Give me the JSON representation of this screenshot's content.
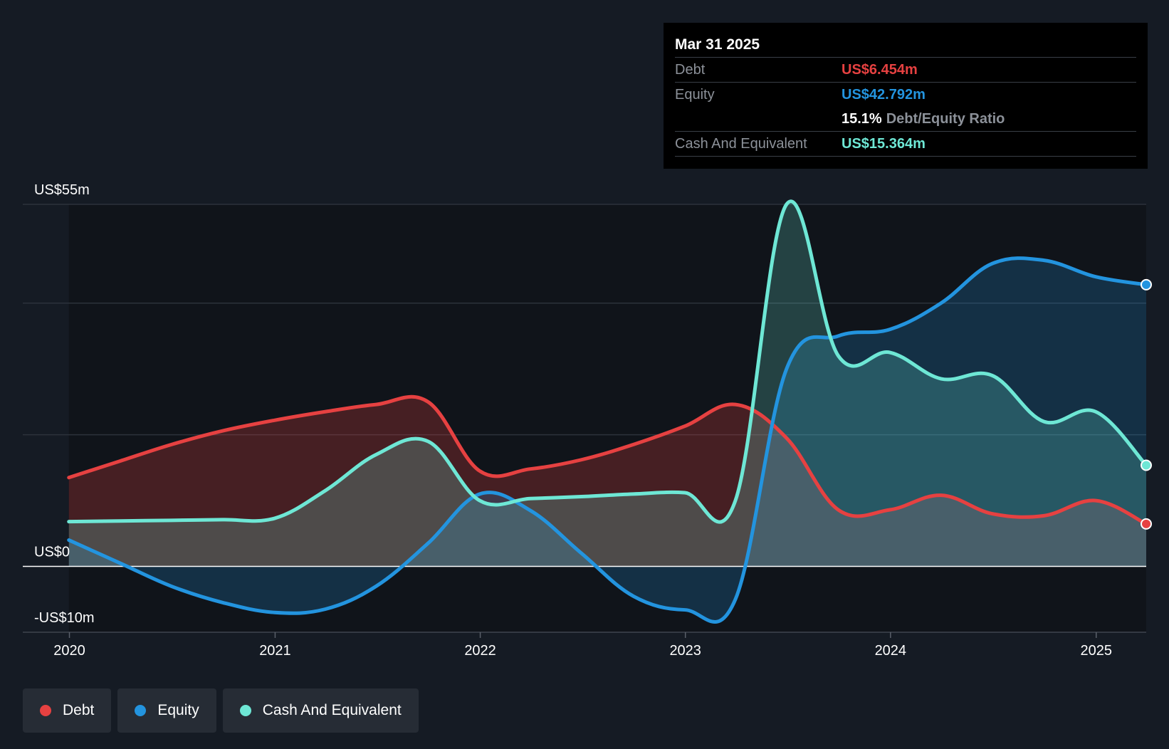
{
  "chart_data": {
    "type": "area",
    "x": [
      "2019-12-31",
      "2020-03-31",
      "2020-06-30",
      "2020-09-30",
      "2020-12-31",
      "2021-03-31",
      "2021-06-30",
      "2021-09-30",
      "2021-12-31",
      "2022-03-31",
      "2022-06-30",
      "2022-09-30",
      "2022-12-31",
      "2023-03-31",
      "2023-06-30",
      "2023-09-30",
      "2023-12-31",
      "2024-03-31",
      "2024-06-30",
      "2024-09-30",
      "2024-12-31",
      "2025-03-31"
    ],
    "series": [
      {
        "name": "Debt",
        "color": "#e64141",
        "values": [
          13.5,
          16.0,
          18.5,
          20.6,
          22.2,
          23.5,
          24.6,
          25.0,
          14.5,
          14.8,
          16.2,
          18.5,
          21.3,
          24.6,
          19.5,
          8.6,
          8.6,
          10.8,
          8.0,
          7.7,
          10.0,
          6.454
        ]
      },
      {
        "name": "Equity",
        "color": "#2394df",
        "values": [
          4.0,
          0.5,
          -3.0,
          -5.5,
          -7.0,
          -6.5,
          -3.0,
          3.5,
          11.0,
          8.5,
          2.0,
          -4.5,
          -6.6,
          -5.0,
          30.0,
          35.0,
          36.0,
          40.0,
          46.0,
          46.5,
          44.0,
          42.792
        ]
      },
      {
        "name": "Cash And Equivalent",
        "color": "#6ee7d5",
        "values": [
          6.8,
          6.9,
          7.0,
          7.1,
          7.3,
          11.5,
          17.0,
          19.0,
          10.0,
          10.3,
          10.6,
          11.0,
          11.2,
          10.0,
          55.0,
          32.0,
          32.5,
          28.5,
          29.0,
          22.0,
          23.5,
          15.364
        ]
      }
    ],
    "ylim": [
      -10,
      55
    ],
    "yticks": [
      55,
      40,
      20,
      0,
      -10
    ],
    "ytick_labels": [
      {
        "value": 55,
        "label": "US$55m"
      },
      {
        "value": 0,
        "label": "US$0"
      },
      {
        "value": -10,
        "label": "-US$10m"
      }
    ],
    "xticks": [
      {
        "date": "2020-01-01",
        "label": "2020"
      },
      {
        "date": "2021-01-01",
        "label": "2021"
      },
      {
        "date": "2022-01-01",
        "label": "2022"
      },
      {
        "date": "2023-01-01",
        "label": "2023"
      },
      {
        "date": "2024-01-01",
        "label": "2024"
      },
      {
        "date": "2025-01-01",
        "label": "2025"
      }
    ],
    "xlim": [
      "2019-10-10",
      "2025-03-31"
    ],
    "grid": true,
    "legend": "bottom-left",
    "forecast_shading_after": "2019-12-31"
  },
  "tooltip": {
    "date": "Mar 31 2025",
    "debt_label": "Debt",
    "debt_value": "US$6.454m",
    "equity_label": "Equity",
    "equity_value": "US$42.792m",
    "ratio_value": "15.1%",
    "ratio_label": "Debt/Equity Ratio",
    "cash_label": "Cash And Equivalent",
    "cash_value": "US$15.364m"
  },
  "legend": {
    "items": [
      {
        "label": "Debt",
        "color": "#e64141"
      },
      {
        "label": "Equity",
        "color": "#2394df"
      },
      {
        "label": "Cash And Equivalent",
        "color": "#6ee7d5"
      }
    ]
  },
  "colors": {
    "background": "#151b24",
    "plot_background": "#10141a",
    "grid": "#2c323b",
    "zero_line": "#ffffff"
  }
}
